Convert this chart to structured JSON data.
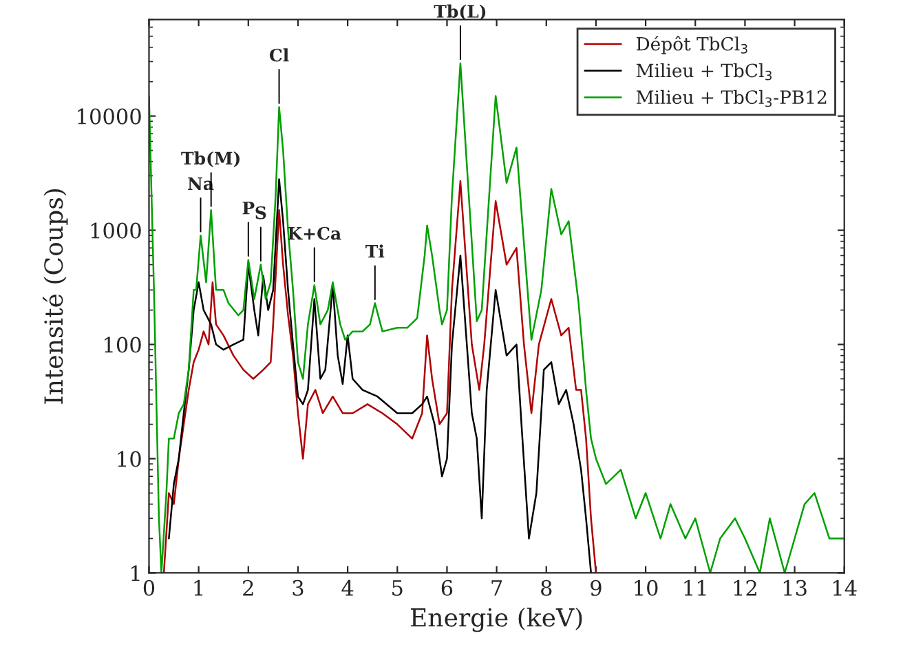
{
  "chart_data": {
    "type": "line",
    "xlabel": "Energie (keV)",
    "ylabel": "Intensité (Coups)",
    "log": "y",
    "xlim": [
      0,
      14
    ],
    "ylim": [
      1,
      70000
    ],
    "xticks": [
      0,
      1,
      2,
      3,
      4,
      5,
      6,
      7,
      8,
      9,
      10,
      11,
      12,
      13,
      14
    ],
    "yticks": [
      1,
      10,
      100,
      1000,
      10000
    ],
    "grid": false,
    "legend": "top right",
    "marker": "none",
    "line_style": "solid",
    "series": [
      {
        "name": "Dépôt TbCl$_{3}$",
        "color": "#b00000",
        "x": [
          0.3,
          0.4,
          0.5,
          0.6,
          0.7,
          0.8,
          0.9,
          1.0,
          1.1,
          1.2,
          1.28,
          1.35,
          1.5,
          1.7,
          1.9,
          2.1,
          2.3,
          2.45,
          2.5,
          2.62,
          2.7,
          2.8,
          2.9,
          3.0,
          3.1,
          3.2,
          3.35,
          3.5,
          3.7,
          3.9,
          4.1,
          4.4,
          4.7,
          5.0,
          5.3,
          5.5,
          5.6,
          5.7,
          5.85,
          6.0,
          6.1,
          6.27,
          6.5,
          6.65,
          6.75,
          6.98,
          7.2,
          7.4,
          7.55,
          7.7,
          7.85,
          8.1,
          8.3,
          8.45,
          8.6,
          8.7,
          8.8,
          8.9,
          9.0
        ],
        "values": [
          1,
          5,
          4,
          10,
          20,
          40,
          70,
          90,
          130,
          100,
          350,
          150,
          120,
          80,
          60,
          50,
          60,
          70,
          150,
          1500,
          500,
          180,
          80,
          25,
          10,
          30,
          40,
          25,
          35,
          25,
          25,
          30,
          25,
          20,
          15,
          25,
          120,
          50,
          20,
          25,
          300,
          2700,
          100,
          40,
          100,
          1800,
          500,
          700,
          100,
          25,
          100,
          250,
          120,
          140,
          40,
          40,
          15,
          3,
          1
        ]
      },
      {
        "name": "Milieu + TbCl$_{3}$",
        "color": "#000000",
        "x": [
          0.4,
          0.5,
          0.6,
          0.7,
          0.8,
          0.9,
          1.0,
          1.1,
          1.25,
          1.35,
          1.5,
          1.7,
          1.9,
          2.0,
          2.12,
          2.2,
          2.3,
          2.4,
          2.5,
          2.62,
          2.7,
          2.8,
          2.9,
          3.0,
          3.1,
          3.2,
          3.33,
          3.45,
          3.55,
          3.7,
          3.8,
          3.9,
          4.0,
          4.1,
          4.3,
          4.6,
          5.0,
          5.3,
          5.5,
          5.6,
          5.75,
          5.9,
          6.0,
          6.1,
          6.27,
          6.5,
          6.6,
          6.7,
          6.8,
          6.98,
          7.2,
          7.4,
          7.5,
          7.65,
          7.8,
          7.95,
          8.1,
          8.25,
          8.4,
          8.55,
          8.7,
          8.8,
          8.9
        ],
        "values": [
          2,
          6,
          10,
          25,
          60,
          200,
          350,
          200,
          150,
          100,
          90,
          100,
          110,
          500,
          200,
          120,
          400,
          200,
          300,
          2800,
          1200,
          300,
          100,
          35,
          30,
          40,
          250,
          50,
          60,
          330,
          80,
          45,
          120,
          50,
          40,
          35,
          25,
          25,
          30,
          35,
          20,
          7,
          10,
          100,
          600,
          25,
          15,
          3,
          40,
          300,
          80,
          100,
          20,
          2,
          5,
          60,
          70,
          30,
          40,
          20,
          8,
          3,
          1
        ]
      },
      {
        "name": "Milieu + TbCl$_{3}$-PB12",
        "color": "#00a000",
        "x": [
          0.0,
          0.1,
          0.2,
          0.25,
          0.35,
          0.4,
          0.5,
          0.6,
          0.7,
          0.8,
          0.9,
          0.95,
          1.04,
          1.15,
          1.25,
          1.35,
          1.5,
          1.6,
          1.8,
          1.9,
          2.0,
          2.12,
          2.25,
          2.35,
          2.45,
          2.55,
          2.62,
          2.7,
          2.8,
          2.9,
          3.0,
          3.1,
          3.2,
          3.33,
          3.45,
          3.6,
          3.7,
          3.85,
          3.95,
          4.1,
          4.3,
          4.45,
          4.55,
          4.7,
          5.0,
          5.2,
          5.4,
          5.55,
          5.6,
          5.7,
          5.85,
          5.9,
          6.0,
          6.1,
          6.27,
          6.6,
          6.7,
          6.98,
          7.2,
          7.4,
          7.7,
          7.9,
          8.1,
          8.3,
          8.45,
          8.65,
          8.8,
          8.9,
          9.0,
          9.2,
          9.5,
          9.8,
          10.0,
          10.3,
          10.5,
          10.8,
          11.0,
          11.3,
          11.5,
          11.8,
          12.0,
          12.3,
          12.5,
          12.8,
          13.0,
          13.2,
          13.4,
          13.7,
          14.0
        ],
        "values": [
          15000,
          300,
          3,
          1,
          5,
          15,
          15,
          25,
          30,
          60,
          300,
          300,
          900,
          350,
          1500,
          300,
          300,
          230,
          180,
          200,
          550,
          250,
          500,
          250,
          350,
          2000,
          12000,
          5000,
          1000,
          300,
          70,
          50,
          150,
          330,
          150,
          200,
          350,
          150,
          110,
          130,
          130,
          150,
          230,
          130,
          140,
          140,
          170,
          600,
          1100,
          600,
          200,
          150,
          200,
          2000,
          29000,
          160,
          200,
          15000,
          2600,
          5300,
          110,
          300,
          2300,
          920,
          1200,
          230,
          40,
          15,
          10,
          6,
          8,
          3,
          5,
          2,
          4,
          2,
          3,
          1,
          2,
          3,
          2,
          1,
          3,
          1,
          2,
          4,
          5,
          2,
          2
        ]
      }
    ],
    "annotations": [
      {
        "text": "Na",
        "x": 1.04,
        "y": 900
      },
      {
        "text": "Tb(M)",
        "x": 1.25,
        "y": 1500
      },
      {
        "text": "P",
        "x": 2.0,
        "y": 550
      },
      {
        "text": "S",
        "x": 2.25,
        "y": 500
      },
      {
        "text": "Cl",
        "x": 2.62,
        "y": 12000
      },
      {
        "text": "K+Ca",
        "x": 3.33,
        "y": 330
      },
      {
        "text": "Ti",
        "x": 4.55,
        "y": 230
      },
      {
        "text": "Tb(L)",
        "x": 6.27,
        "y": 29000
      }
    ]
  }
}
